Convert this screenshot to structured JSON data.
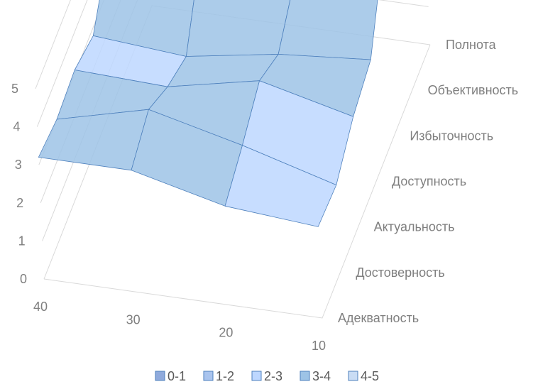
{
  "chart_data": {
    "type": "surface",
    "title": "",
    "x_categories": [
      "40",
      "30",
      "20",
      "10"
    ],
    "series": [
      "Адекватность",
      "Достоверность",
      "Актуальность",
      "Доступность",
      "Избыточность",
      "Объективность",
      "Полнота"
    ],
    "z_ticks": [
      "0",
      "1",
      "2",
      "3",
      "4",
      "5"
    ],
    "z_range": [
      0,
      5
    ],
    "values": [
      [
        3.2,
        3.0,
        3.1,
        2.8,
        4.0,
        3.5,
        4.0
      ],
      [
        3.2,
        3.6,
        3.0,
        2.6,
        4.3,
        3.7,
        4.3
      ],
      [
        2.6,
        3.0,
        3.5,
        3.0,
        3.8,
        4.6,
        4.0
      ],
      [
        2.4,
        2.3,
        2.9,
        3.2,
        5.3,
        4.7,
        3.8
      ]
    ],
    "legend": [
      "0-1",
      "1-2",
      "2-3",
      "3-4",
      "4-5"
    ],
    "band_colors": [
      "#8faadc",
      "#a9c4ee",
      "#bdd7ff",
      "#9dc3e6",
      "#c9dcf4"
    ],
    "legend_position": "bottom"
  }
}
